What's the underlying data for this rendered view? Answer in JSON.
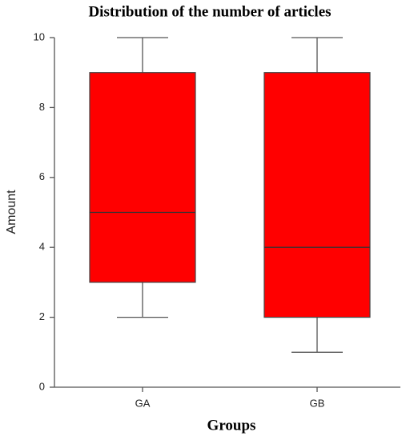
{
  "chart_data": {
    "type": "box",
    "title": "Distribution of the number of articles",
    "x_label": "Groups",
    "y_label": "Amount",
    "categories": [
      "GA",
      "GB"
    ],
    "min": [
      2,
      1
    ],
    "q1": [
      3,
      2
    ],
    "median": [
      5,
      4
    ],
    "q3": [
      9,
      9
    ],
    "max": [
      10,
      10
    ],
    "color": "#ff0000",
    "ylim": [
      0,
      10
    ],
    "yticks": [
      0,
      2,
      4,
      6,
      8,
      10
    ],
    "grid": false
  }
}
